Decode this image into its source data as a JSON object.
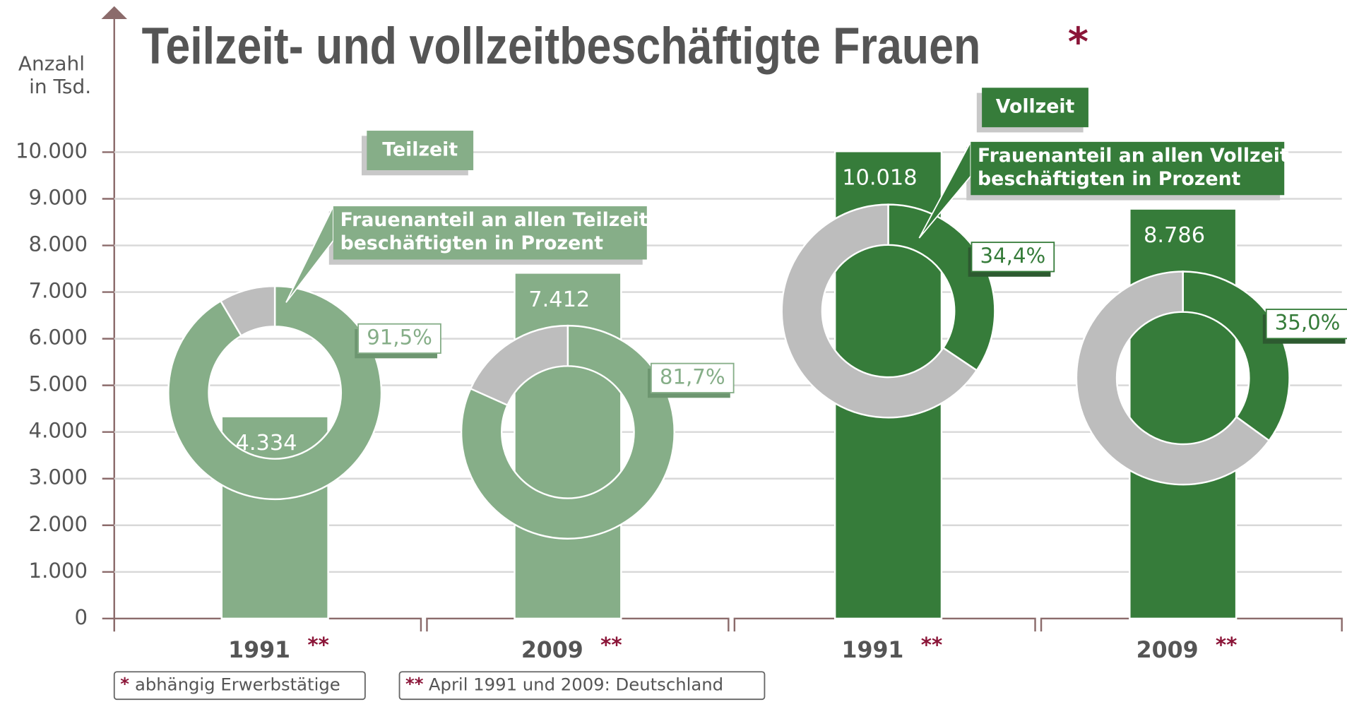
{
  "chart_data": {
    "type": "bar",
    "title": "Teilzeit- und vollzeitbeschäftigte Frauen",
    "title_marker": "*",
    "y_label": [
      "Anzahl",
      "in Tsd."
    ],
    "categories": [
      "1991",
      "2009",
      "1991",
      "2009"
    ],
    "category_marker": "**",
    "series": [
      {
        "name": "Teilzeit",
        "color": "#86ae88",
        "values": [
          4334,
          7412,
          null,
          null
        ],
        "value_labels": [
          "4.334",
          "7.412",
          null,
          null
        ]
      },
      {
        "name": "Vollzeit",
        "color": "#367c3a",
        "values": [
          null,
          null,
          10018,
          8786
        ],
        "value_labels": [
          null,
          null,
          "10.018",
          "8.786"
        ]
      }
    ],
    "shares": {
      "values": [
        91.5,
        81.7,
        34.4,
        35.0
      ],
      "value_labels": [
        "91,5%",
        "81,7%",
        "34,4%",
        "35,0%"
      ],
      "rest_color": "#bdbdbd",
      "annotations": [
        [
          "Frauenanteil an allen Teilzeit-",
          "beschäftigten in Prozent"
        ],
        [
          "Frauenanteil an allen Vollzeit-",
          "beschäftigten in Prozent"
        ]
      ]
    },
    "ylim": [
      0,
      10000
    ],
    "yticks": [
      0,
      {
        "value": 1000,
        "label": "1.000"
      },
      {
        "value": 2000,
        "label": "2.000"
      },
      {
        "value": 3000,
        "label": "3.000"
      },
      {
        "value": 4000,
        "label": "4.000"
      },
      {
        "value": 5000,
        "label": "5.000"
      },
      {
        "value": 6000,
        "label": "6.000"
      },
      {
        "value": 7000,
        "label": "7.000"
      },
      {
        "value": 8000,
        "label": "8.000"
      },
      {
        "value": 9000,
        "label": "9.000"
      },
      {
        "value": 10000,
        "label": "10.000"
      }
    ],
    "grid": true,
    "footnotes": [
      {
        "marker": "*",
        "text": "abhängig Erwerbstätige"
      },
      {
        "marker": "**",
        "text": "April 1991 und 2009: Deutschland"
      }
    ]
  }
}
